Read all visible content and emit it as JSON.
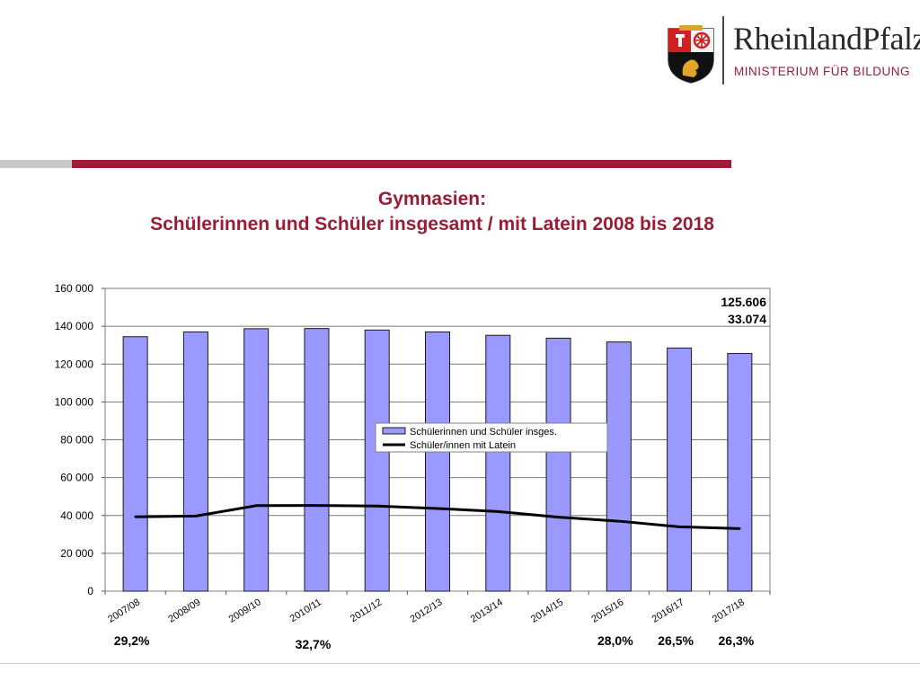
{
  "header": {
    "brand": "RheinlandPfalz",
    "ministry": "MINISTERIUM FÜR BILDUNG"
  },
  "title": {
    "line1": "Gymnasien:",
    "line2": "Schülerinnen und Schüler insgesamt / mit Latein 2008 bis 2018"
  },
  "chart_data": {
    "type": "bar",
    "title": "Gymnasien: Schülerinnen und Schüler insgesamt / mit Latein 2008 bis 2018",
    "categories": [
      "2007/08",
      "2008/09",
      "2009/10",
      "2010/11",
      "2011/12",
      "2012/13",
      "2013/14",
      "2014/15",
      "2015/16",
      "2016/17",
      "2017/18"
    ],
    "series": [
      {
        "name": "Schülerinnen und Schüler insges.",
        "type": "bar",
        "color": "#9999ff",
        "values": [
          134500,
          137000,
          138700,
          138800,
          138000,
          137000,
          135200,
          133700,
          131700,
          128500,
          125606
        ]
      },
      {
        "name": "Schüler/innen mit Latein",
        "type": "line",
        "color": "#000000",
        "values": [
          39300,
          39700,
          45200,
          45300,
          45000,
          43700,
          42100,
          39100,
          37000,
          34000,
          33074
        ]
      }
    ],
    "ylim": [
      0,
      160000
    ],
    "yticks": [
      0,
      20000,
      40000,
      60000,
      80000,
      100000,
      120000,
      140000,
      160000
    ],
    "ytick_labels": [
      "0",
      "20 000",
      "40 000",
      "60 000",
      "80 000",
      "100 000",
      "120 000",
      "140 000",
      "160 000"
    ],
    "grid": true,
    "legend_position": "center",
    "annotations": {
      "last_total": "125.606",
      "last_latin": "33.074"
    },
    "percent_labels": [
      {
        "category": "2007/08",
        "text": "29,2%"
      },
      {
        "category": "2010/11",
        "text": "32,7%"
      },
      {
        "category": "2015/16",
        "text": "28,0%"
      },
      {
        "category": "2016/17",
        "text": "26,5%"
      },
      {
        "category": "2017/18",
        "text": "26,3%"
      }
    ]
  }
}
